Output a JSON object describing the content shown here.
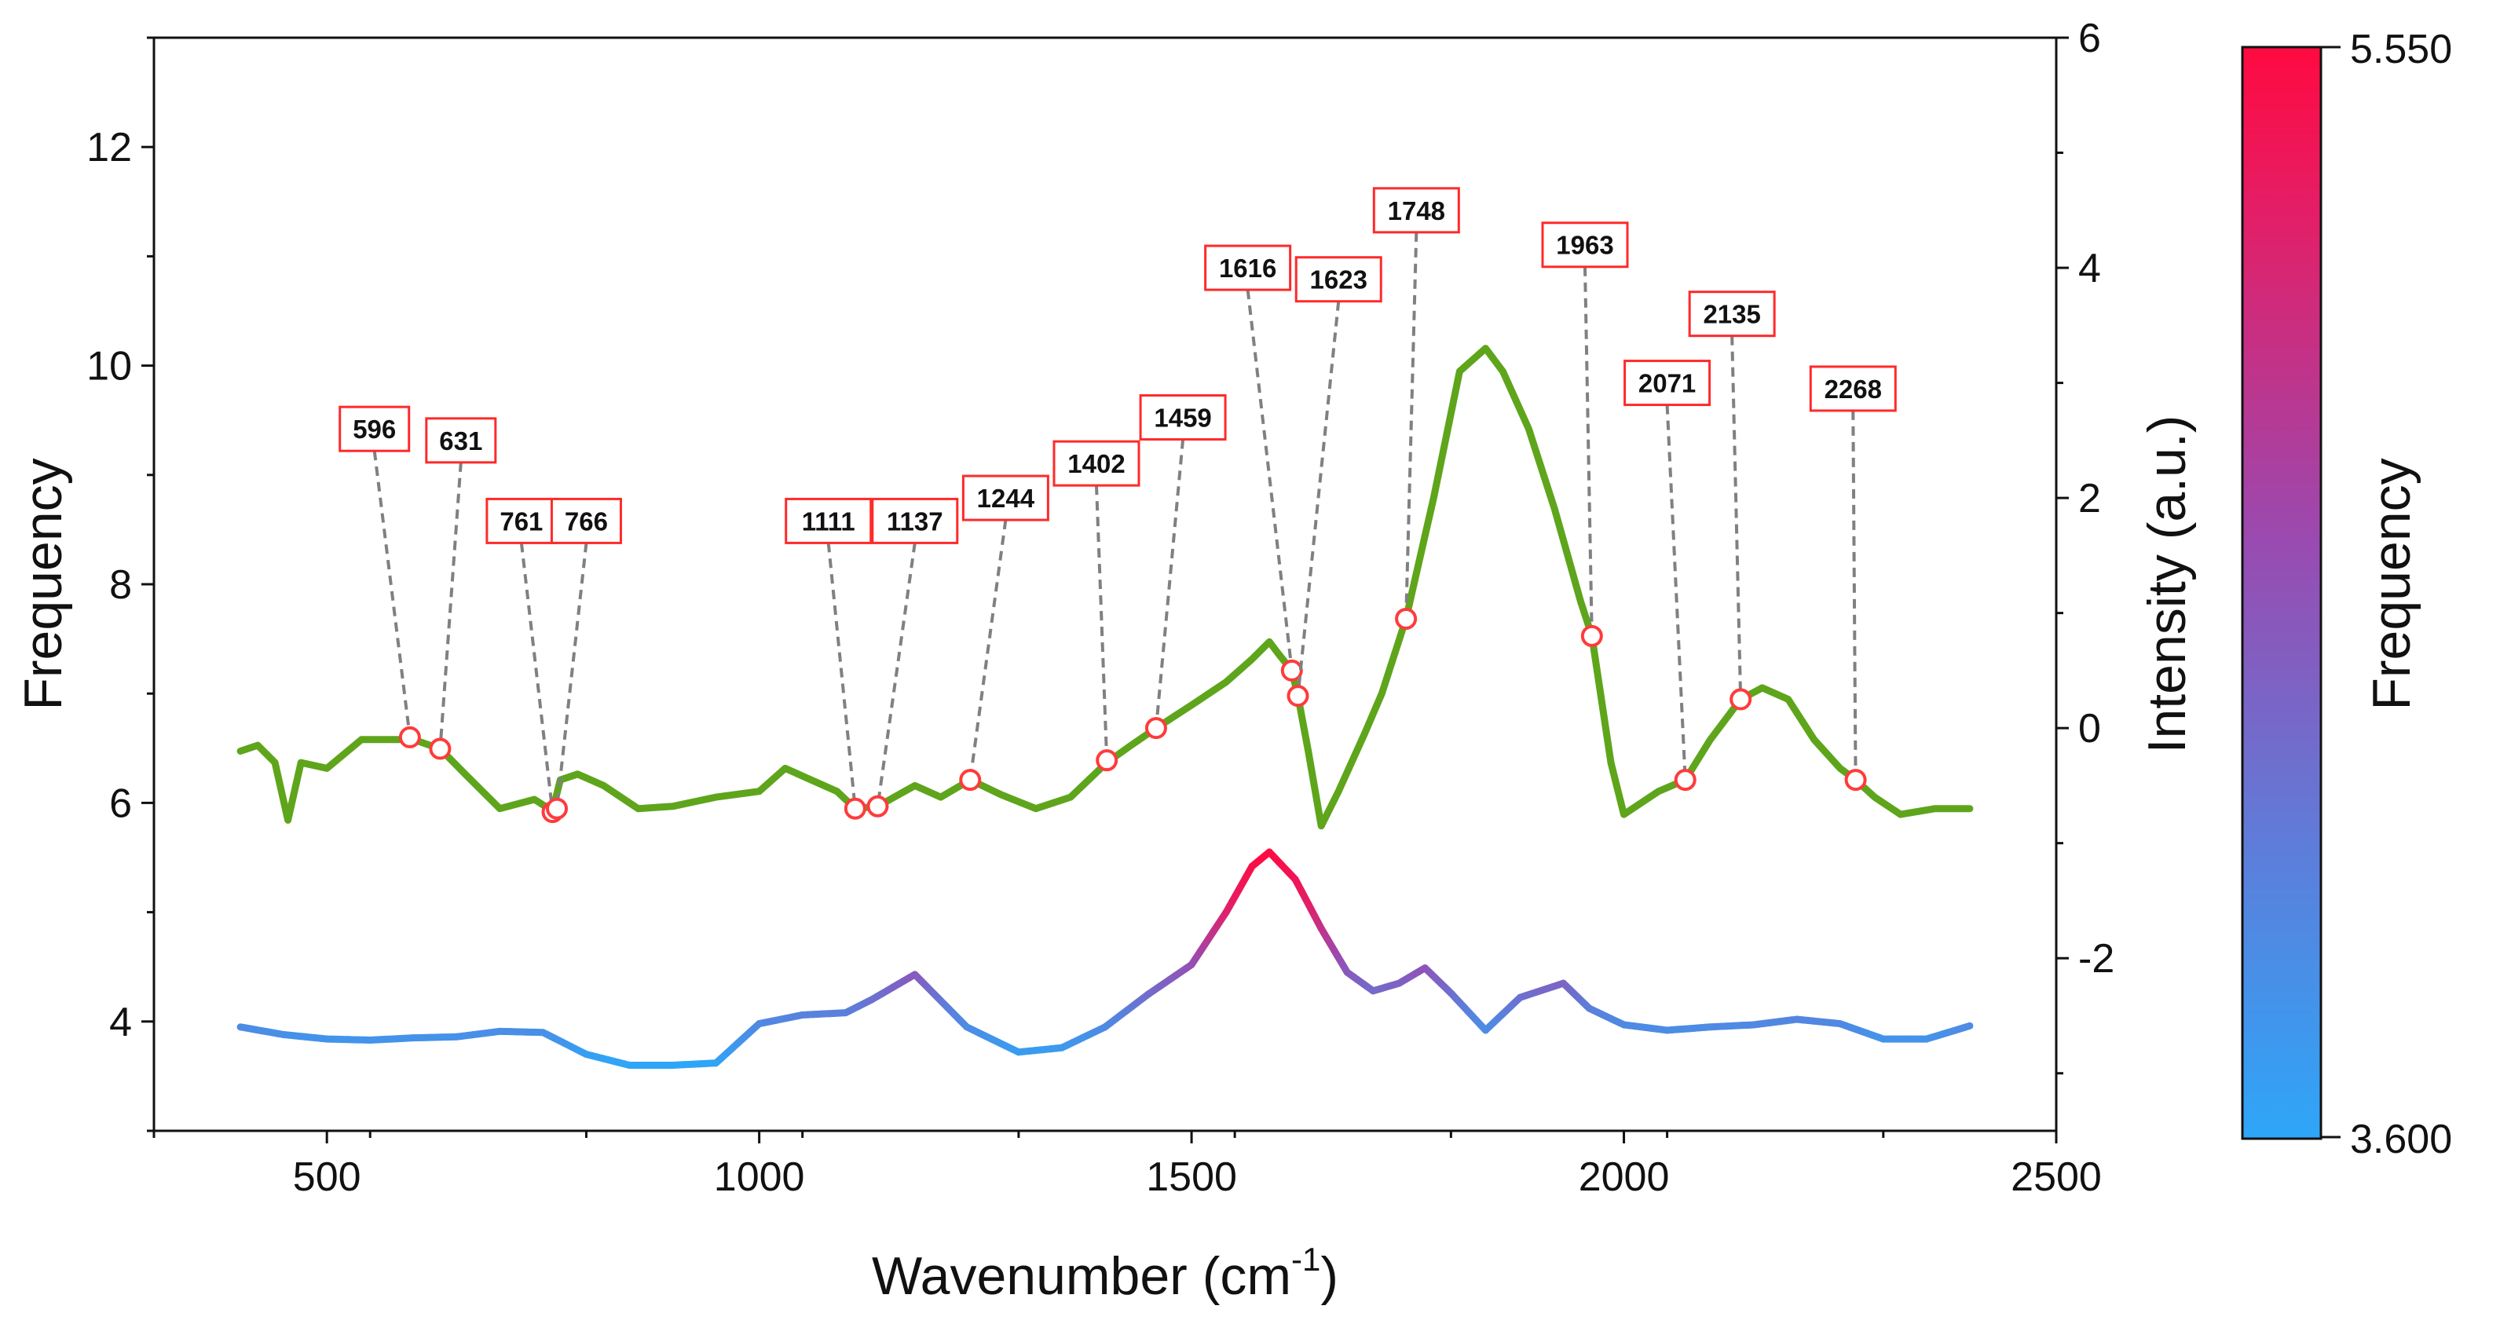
{
  "chart_data": {
    "type": "line",
    "title": "",
    "xlabel": "Wavenumber (cm",
    "xlabel_sup": "-1",
    "xlabel_end": ")",
    "xlim": [
      300,
      2500
    ],
    "xticks": [
      500,
      1000,
      1500,
      2000,
      2500
    ],
    "ylabel_left": "Frequency",
    "ylim_left": [
      3,
      13
    ],
    "yticks_left": [
      4,
      6,
      8,
      10,
      12
    ],
    "ylabel_right": "Intensity (a.u.)",
    "ylim_right": [
      -3.5,
      6
    ],
    "yticks_right": [
      -2,
      0,
      2,
      4,
      6
    ],
    "colorbar": {
      "label": "Frequency",
      "min": 3.6,
      "max": 5.55,
      "min_label": "3.600",
      "max_label": "5.550",
      "colors": [
        "#2ea6f8",
        "#5a80dc",
        "#9a4ab0",
        "#e41e66",
        "#ff0a40"
      ]
    },
    "series": [
      {
        "name": "Frequency",
        "axis": "left",
        "color_by_value": true,
        "x": [
          400,
          450,
          500,
          550,
          600,
          650,
          700,
          750,
          800,
          850,
          900,
          950,
          1000,
          1050,
          1100,
          1130,
          1180,
          1240,
          1300,
          1350,
          1400,
          1450,
          1500,
          1540,
          1570,
          1590,
          1620,
          1650,
          1680,
          1710,
          1740,
          1770,
          1800,
          1840,
          1880,
          1930,
          1960,
          2000,
          2050,
          2100,
          2150,
          2200,
          2250,
          2300,
          2350,
          2400
        ],
        "y": [
          3.95,
          3.88,
          3.84,
          3.83,
          3.85,
          3.86,
          3.91,
          3.9,
          3.7,
          3.6,
          3.6,
          3.62,
          3.98,
          4.06,
          4.08,
          4.2,
          4.43,
          3.95,
          3.72,
          3.76,
          3.95,
          4.25,
          4.52,
          5.0,
          5.42,
          5.55,
          5.3,
          4.85,
          4.45,
          4.28,
          4.35,
          4.49,
          4.26,
          3.92,
          4.22,
          4.35,
          4.12,
          3.97,
          3.92,
          3.95,
          3.97,
          4.02,
          3.98,
          3.84,
          3.84,
          3.96
        ]
      },
      {
        "name": "Intensity",
        "axis": "right",
        "color": "#5ea51b",
        "x": [
          400,
          420,
          440,
          455,
          470,
          500,
          540,
          580,
          600,
          631,
          660,
          700,
          740,
          761,
          770,
          790,
          820,
          860,
          900,
          950,
          1000,
          1030,
          1060,
          1090,
          1111,
          1137,
          1180,
          1210,
          1244,
          1280,
          1320,
          1360,
          1402,
          1430,
          1459,
          1500,
          1540,
          1570,
          1590,
          1600,
          1616,
          1623,
          1635,
          1650,
          1670,
          1700,
          1720,
          1748,
          1780,
          1810,
          1840,
          1860,
          1890,
          1920,
          1950,
          1963,
          1985,
          2000,
          2040,
          2071,
          2100,
          2135,
          2160,
          2190,
          2220,
          2250,
          2268,
          2290,
          2320,
          2360,
          2400
        ],
        "y": [
          -0.2,
          -0.15,
          -0.3,
          -0.8,
          -0.3,
          -0.35,
          -0.1,
          -0.1,
          -0.1,
          -0.18,
          -0.4,
          -0.7,
          -0.62,
          -0.72,
          -0.45,
          -0.4,
          -0.5,
          -0.7,
          -0.68,
          -0.6,
          -0.55,
          -0.35,
          -0.45,
          -0.55,
          -0.7,
          -0.68,
          -0.5,
          -0.6,
          -0.45,
          -0.58,
          -0.7,
          -0.6,
          -0.3,
          -0.15,
          0.0,
          0.2,
          0.4,
          0.6,
          0.75,
          0.65,
          0.5,
          0.28,
          -0.2,
          -0.85,
          -0.55,
          -0.05,
          0.3,
          0.95,
          2.0,
          3.1,
          3.3,
          3.1,
          2.6,
          1.9,
          1.1,
          0.8,
          -0.3,
          -0.75,
          -0.55,
          -0.45,
          -0.1,
          0.25,
          0.35,
          0.25,
          -0.1,
          -0.35,
          -0.45,
          -0.6,
          -0.75,
          -0.7,
          -0.7
        ]
      }
    ],
    "annotations": [
      {
        "label": "596",
        "x": 596,
        "y": -0.08,
        "box_x": 555,
        "box_level": 2.6
      },
      {
        "label": "631",
        "x": 631,
        "y": -0.18,
        "box_x": 655,
        "box_level": 2.5
      },
      {
        "label": "761",
        "x": 761,
        "y": -0.73,
        "box_x": 725,
        "box_level": 1.8
      },
      {
        "label": "766",
        "x": 766,
        "y": -0.7,
        "box_x": 800,
        "box_level": 1.8
      },
      {
        "label": "1111",
        "x": 1111,
        "y": -0.7,
        "box_x": 1080,
        "box_level": 1.8
      },
      {
        "label": "1137",
        "x": 1137,
        "y": -0.68,
        "box_x": 1180,
        "box_level": 1.8
      },
      {
        "label": "1244",
        "x": 1244,
        "y": -0.45,
        "box_x": 1285,
        "box_level": 2.0
      },
      {
        "label": "1402",
        "x": 1402,
        "y": -0.28,
        "box_x": 1390,
        "box_level": 2.3
      },
      {
        "label": "1459",
        "x": 1459,
        "y": 0.0,
        "box_x": 1490,
        "box_level": 2.7
      },
      {
        "label": "1616",
        "x": 1616,
        "y": 0.5,
        "box_x": 1565,
        "box_level": 4.0
      },
      {
        "label": "1623",
        "x": 1623,
        "y": 0.28,
        "box_x": 1670,
        "box_level": 3.9
      },
      {
        "label": "1748",
        "x": 1748,
        "y": 0.95,
        "box_x": 1760,
        "box_level": 4.5
      },
      {
        "label": "1963",
        "x": 1963,
        "y": 0.8,
        "box_x": 1955,
        "box_level": 4.2
      },
      {
        "label": "2071",
        "x": 2071,
        "y": -0.45,
        "box_x": 2050,
        "box_level": 3.0
      },
      {
        "label": "2135",
        "x": 2135,
        "y": 0.25,
        "box_x": 2125,
        "box_level": 3.6
      },
      {
        "label": "2268",
        "x": 2268,
        "y": -0.45,
        "box_x": 2265,
        "box_level": 2.95
      }
    ]
  }
}
